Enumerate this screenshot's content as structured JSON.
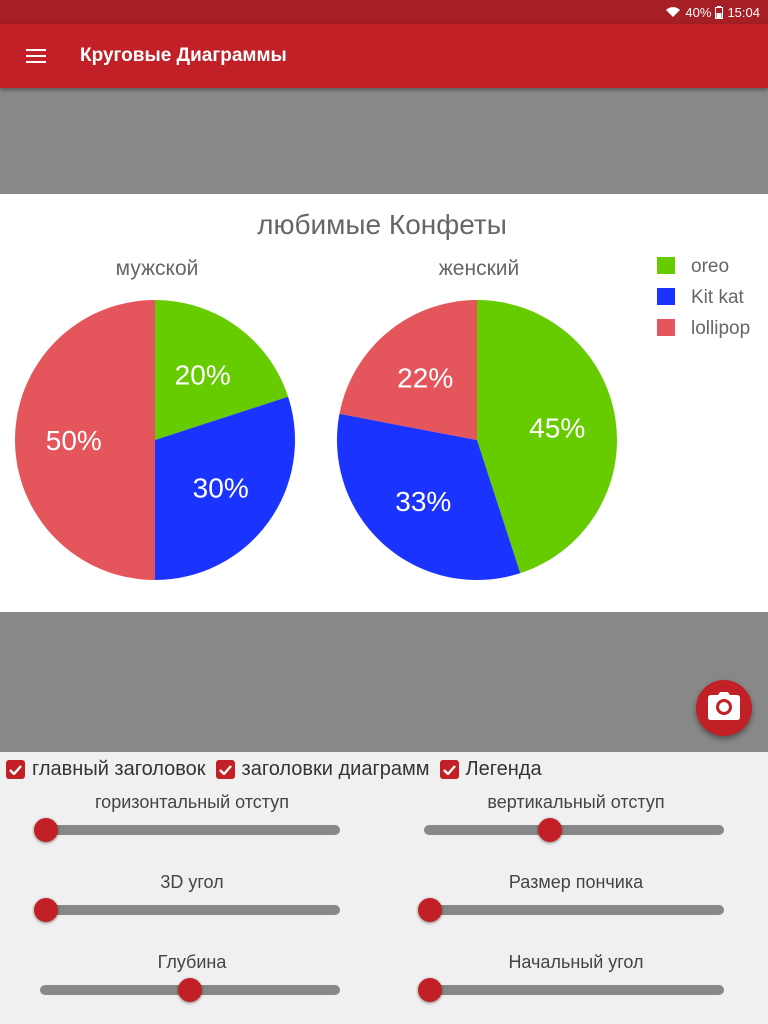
{
  "status_bar": {
    "battery": "40%",
    "time": "15:04",
    "icons": [
      "wifi-icon",
      "battery-icon"
    ]
  },
  "app_bar": {
    "title": "Круговые Диаграммы",
    "menu_icon": "hamburger-menu-icon"
  },
  "fab": {
    "icon": "camera-icon"
  },
  "chart_data": {
    "type": "pie",
    "title": "любимые Конфеты",
    "legend": [
      {
        "label": "oreo",
        "color": "#66cc00"
      },
      {
        "label": "Kit kat",
        "color": "#1a33ff"
      },
      {
        "label": "lollipop",
        "color": "#e5555c"
      }
    ],
    "legend_position": "top-right",
    "pies": [
      {
        "title": "мужской",
        "slices": [
          {
            "label": "oreo",
            "value": 20,
            "display": "20%"
          },
          {
            "label": "Kit kat",
            "value": 30,
            "display": "30%"
          },
          {
            "label": "lollipop",
            "value": 50,
            "display": "50%"
          }
        ]
      },
      {
        "title": "женский",
        "slices": [
          {
            "label": "oreo",
            "value": 45,
            "display": "45%"
          },
          {
            "label": "Kit kat",
            "value": 33,
            "display": "33%"
          },
          {
            "label": "lollipop",
            "value": 22,
            "display": "22%"
          }
        ]
      }
    ]
  },
  "controls": {
    "checkboxes": [
      {
        "label": "главный заголовок",
        "checked": true
      },
      {
        "label": "заголовки диаграмм",
        "checked": true
      },
      {
        "label": "Легенда",
        "checked": true
      }
    ],
    "sliders": [
      {
        "label": "горизонтальный отступ",
        "value": 0.02
      },
      {
        "label": "вертикальный отступ",
        "value": 0.42
      },
      {
        "label": "3D угол",
        "value": 0.02
      },
      {
        "label": "Размер пончика",
        "value": 0.02
      },
      {
        "label": "Глубина",
        "value": 0.5
      },
      {
        "label": "Начальный угол",
        "value": 0.02
      }
    ]
  }
}
